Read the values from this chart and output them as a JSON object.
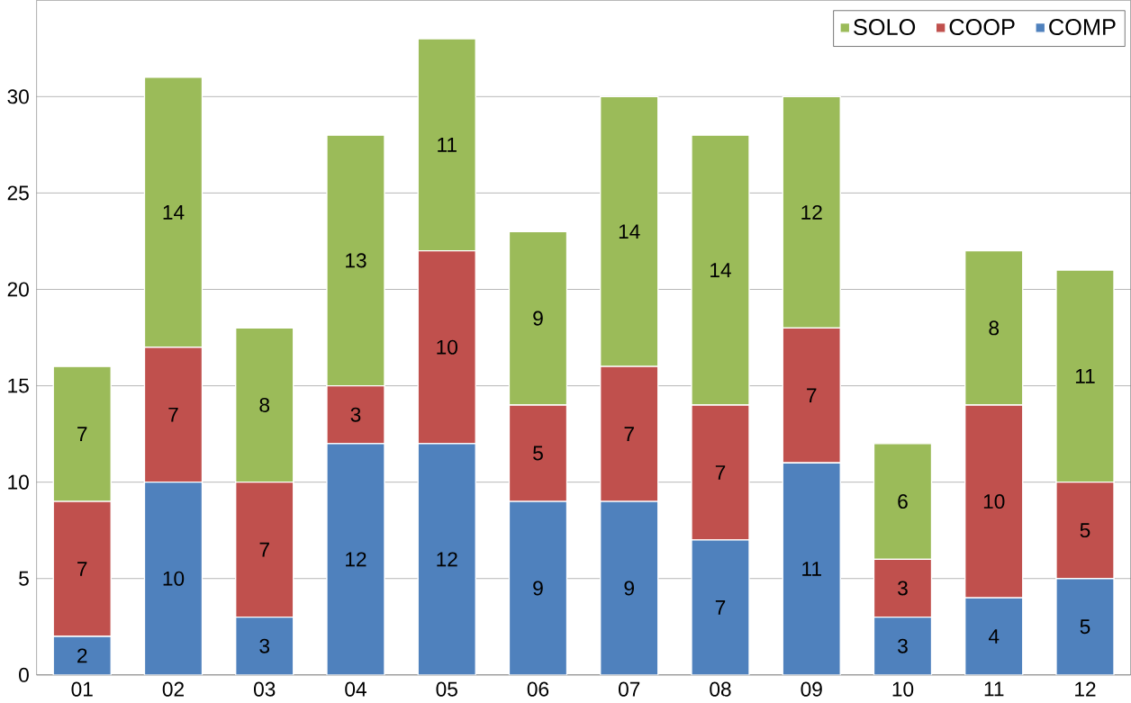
{
  "chart_data": {
    "type": "bar",
    "stacked": true,
    "categories": [
      "01",
      "02",
      "03",
      "04",
      "05",
      "06",
      "07",
      "08",
      "09",
      "10",
      "11",
      "12"
    ],
    "series": [
      {
        "name": "COMP",
        "color": "#4f81bd",
        "values": [
          2,
          10,
          3,
          12,
          12,
          9,
          9,
          7,
          11,
          3,
          4,
          5
        ]
      },
      {
        "name": "COOP",
        "color": "#c0504d",
        "values": [
          7,
          7,
          7,
          3,
          10,
          5,
          7,
          7,
          7,
          3,
          10,
          5
        ]
      },
      {
        "name": "SOLO",
        "color": "#9bbb59",
        "values": [
          7,
          14,
          8,
          13,
          11,
          9,
          14,
          14,
          12,
          6,
          8,
          11
        ]
      }
    ],
    "ylim": [
      0,
      35
    ],
    "yticks": [
      0,
      5,
      10,
      15,
      20,
      25,
      30
    ],
    "grid": "y",
    "legend": "top right",
    "data_labels": true
  }
}
